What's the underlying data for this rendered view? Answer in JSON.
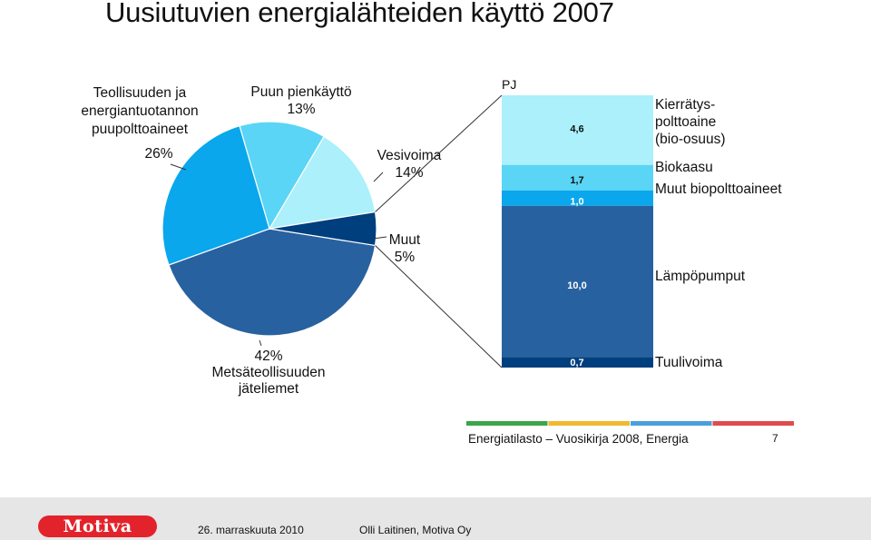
{
  "title": "Uusiutuvien energialähteiden käyttö 2007",
  "colors": {
    "metsateollisuus": "#2861a0",
    "teollisuus": "#0aa7ec",
    "puun_pienkaytto": "#5ad5f5",
    "vesivoima": "#abf0fb",
    "muut": "#003f7d",
    "kierratys": "#abf0fb",
    "biokaasu": "#5ad5f5",
    "muut_bio": "#0aa7ec",
    "lampopumput": "#2861a0",
    "tuulivoima": "#003f7d",
    "stripe": [
      "#3ca54a",
      "#f0b92e",
      "#4a9fdc",
      "#e04b4d"
    ]
  },
  "chart_data": [
    {
      "type": "pie",
      "slices": [
        {
          "name": "Metsäteollisuuden jäteliemet",
          "label_lines": [
            "42%",
            "Metsäteollisuuden",
            "jäteliemet"
          ],
          "value": 42
        },
        {
          "name": "Teollisuuden ja energiantuotannon puupolttoaineet",
          "label_lines": [
            "Teollisuuden ja",
            "energiantuotannon",
            "puupolttoaineet",
            "26%"
          ],
          "value": 26
        },
        {
          "name": "Puun pienkäyttö",
          "label_lines": [
            "Puun pienkäyttö",
            "13%"
          ],
          "value": 13
        },
        {
          "name": "Vesivoima",
          "label_lines": [
            "Vesivoima",
            "14%"
          ],
          "value": 14
        },
        {
          "name": "Muut",
          "label_lines": [
            "Muut",
            "5%"
          ],
          "value": 5
        }
      ]
    },
    {
      "type": "bar",
      "stacked": true,
      "unit": "PJ",
      "segments": [
        {
          "name": "Tuulivoima",
          "label_lines": [
            "Tuulivoima"
          ],
          "value": 0.7,
          "value_label": "0,7"
        },
        {
          "name": "Lämpöpumput",
          "label_lines": [
            "Lämpöpumput"
          ],
          "value": 10.0,
          "value_label": "10,0"
        },
        {
          "name": "Muut biopolttoaineet",
          "label_lines": [
            "Muut biopolttoaineet"
          ],
          "value": 1.0,
          "value_label": "1,0"
        },
        {
          "name": "Biokaasu",
          "label_lines": [
            "Biokaasu"
          ],
          "value": 1.7,
          "value_label": "1,7"
        },
        {
          "name": "Kierrätyspolttoaine (bio-osuus)",
          "label_lines": [
            "Kierrätys-",
            "polttoaine",
            "(bio-osuus)"
          ],
          "value": 4.6,
          "value_label": "4,6"
        }
      ]
    }
  ],
  "source": "Energiatilasto – Vuosikirja 2008, Energia",
  "page_number": "7",
  "footer": {
    "logo": "Motiva",
    "date": "26. marraskuuta 2010",
    "author": "Olli Laitinen, Motiva Oy"
  }
}
